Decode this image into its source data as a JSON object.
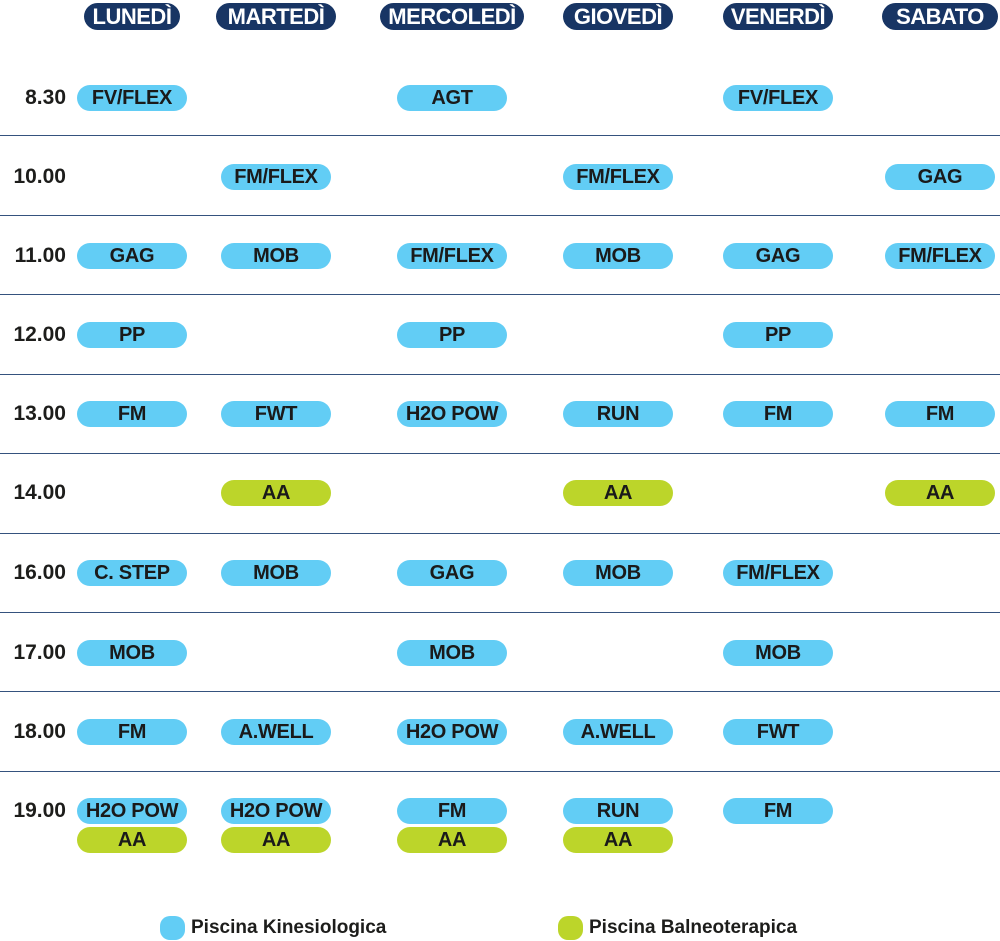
{
  "days": [
    "LUNEDÌ",
    "MARTEDÌ",
    "MERCOLEDÌ",
    "GIOVEDÌ",
    "VENERDÌ",
    "SABATO"
  ],
  "times": [
    "8.30",
    "10.00",
    "11.00",
    "12.00",
    "13.00",
    "14.00",
    "16.00",
    "17.00",
    "18.00",
    "19.00"
  ],
  "schedule": [
    [
      [
        {
          "label": "FV/FLEX",
          "pool": "k"
        }
      ],
      [],
      [
        {
          "label": "AGT",
          "pool": "k"
        }
      ],
      [],
      [
        {
          "label": "FV/FLEX",
          "pool": "k"
        }
      ],
      []
    ],
    [
      [],
      [
        {
          "label": "FM/FLEX",
          "pool": "k"
        }
      ],
      [],
      [
        {
          "label": "FM/FLEX",
          "pool": "k"
        }
      ],
      [],
      [
        {
          "label": "GAG",
          "pool": "k"
        }
      ]
    ],
    [
      [
        {
          "label": "GAG",
          "pool": "k"
        }
      ],
      [
        {
          "label": "MOB",
          "pool": "k"
        }
      ],
      [
        {
          "label": "FM/FLEX",
          "pool": "k"
        }
      ],
      [
        {
          "label": "MOB",
          "pool": "k"
        }
      ],
      [
        {
          "label": "GAG",
          "pool": "k"
        }
      ],
      [
        {
          "label": "FM/FLEX",
          "pool": "k"
        }
      ]
    ],
    [
      [
        {
          "label": "PP",
          "pool": "k"
        }
      ],
      [],
      [
        {
          "label": "PP",
          "pool": "k"
        }
      ],
      [],
      [
        {
          "label": "PP",
          "pool": "k"
        }
      ],
      []
    ],
    [
      [
        {
          "label": "FM",
          "pool": "k"
        }
      ],
      [
        {
          "label": "FWT",
          "pool": "k"
        }
      ],
      [
        {
          "label": "H2O POW",
          "pool": "k"
        }
      ],
      [
        {
          "label": "RUN",
          "pool": "k"
        }
      ],
      [
        {
          "label": "FM",
          "pool": "k"
        }
      ],
      [
        {
          "label": "FM",
          "pool": "k"
        }
      ]
    ],
    [
      [],
      [
        {
          "label": "AA",
          "pool": "b"
        }
      ],
      [],
      [
        {
          "label": "AA",
          "pool": "b"
        }
      ],
      [],
      [
        {
          "label": "AA",
          "pool": "b"
        }
      ]
    ],
    [
      [
        {
          "label": "C. STEP",
          "pool": "k"
        }
      ],
      [
        {
          "label": "MOB",
          "pool": "k"
        }
      ],
      [
        {
          "label": "GAG",
          "pool": "k"
        }
      ],
      [
        {
          "label": "MOB",
          "pool": "k"
        }
      ],
      [
        {
          "label": "FM/FLEX",
          "pool": "k"
        }
      ],
      []
    ],
    [
      [
        {
          "label": "MOB",
          "pool": "k"
        }
      ],
      [],
      [
        {
          "label": "MOB",
          "pool": "k"
        }
      ],
      [],
      [
        {
          "label": "MOB",
          "pool": "k"
        }
      ],
      []
    ],
    [
      [
        {
          "label": "FM",
          "pool": "k"
        }
      ],
      [
        {
          "label": "A.WELL",
          "pool": "k"
        }
      ],
      [
        {
          "label": "H2O POW",
          "pool": "k"
        }
      ],
      [
        {
          "label": "A.WELL",
          "pool": "k"
        }
      ],
      [
        {
          "label": "FWT",
          "pool": "k"
        }
      ],
      []
    ],
    [
      [
        {
          "label": "H2O POW",
          "pool": "k"
        },
        {
          "label": "AA",
          "pool": "b"
        }
      ],
      [
        {
          "label": "H2O POW",
          "pool": "k"
        },
        {
          "label": "AA",
          "pool": "b"
        }
      ],
      [
        {
          "label": "FM",
          "pool": "k"
        },
        {
          "label": "AA",
          "pool": "b"
        }
      ],
      [
        {
          "label": "RUN",
          "pool": "k"
        },
        {
          "label": "AA",
          "pool": "b"
        }
      ],
      [
        {
          "label": "FM",
          "pool": "k"
        }
      ],
      []
    ]
  ],
  "legend": [
    {
      "label": "Piscina Kinesiologica",
      "color": "#62cdf5"
    },
    {
      "label": "Piscina Balneoterapica",
      "color": "#bcd52a"
    }
  ],
  "colors": {
    "header": "#183564",
    "kinesiologica": "#62cdf5",
    "balneoterapica": "#bcd52a",
    "divider": "#35527e"
  }
}
